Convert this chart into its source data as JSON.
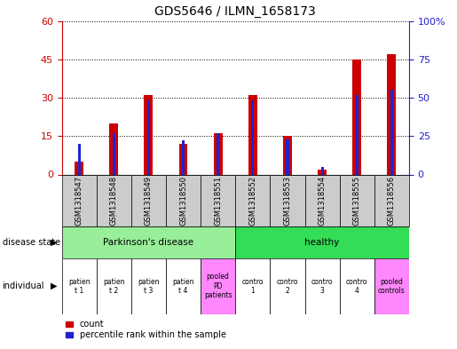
{
  "title": "GDS5646 / ILMN_1658173",
  "samples": [
    "GSM1318547",
    "GSM1318548",
    "GSM1318549",
    "GSM1318550",
    "GSM1318551",
    "GSM1318552",
    "GSM1318553",
    "GSM1318554",
    "GSM1318555",
    "GSM1318556"
  ],
  "count_values": [
    5,
    20,
    31,
    12,
    16,
    31,
    15,
    2,
    45,
    47
  ],
  "percentile_values": [
    20,
    27,
    48,
    22,
    27,
    48,
    23,
    5,
    52,
    55
  ],
  "ylim_left": [
    0,
    60
  ],
  "ylim_right": [
    0,
    100
  ],
  "yticks_left": [
    0,
    15,
    30,
    45,
    60
  ],
  "yticks_right": [
    0,
    25,
    50,
    75,
    100
  ],
  "individual_labels": [
    "patien\nt 1",
    "patien\nt 2",
    "patien\nt 3",
    "patien\nt 4",
    "pooled\nPD\npatients",
    "contro\n1",
    "contro\n2",
    "contro\n3",
    "contro\n4",
    "pooled\ncontrols"
  ],
  "individual_colors": [
    "#FFFFFF",
    "#FFFFFF",
    "#FFFFFF",
    "#FFFFFF",
    "#FF88FF",
    "#FFFFFF",
    "#FFFFFF",
    "#FFFFFF",
    "#FFFFFF",
    "#FF88FF"
  ],
  "gsm_bg_color": "#CCCCCC",
  "bar_color_red": "#CC0000",
  "bar_color_blue": "#2222CC",
  "left_tick_color": "#CC0000",
  "right_tick_color": "#2222CC",
  "pd_color": "#99EE99",
  "healthy_color": "#33DD55"
}
